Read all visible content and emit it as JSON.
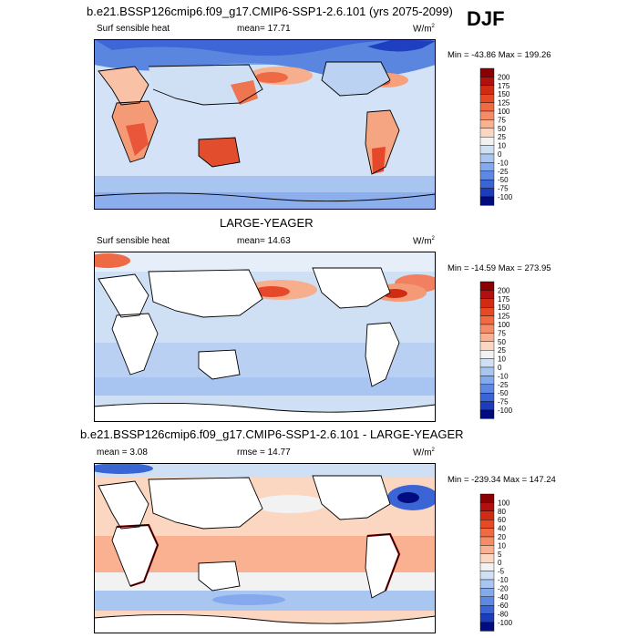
{
  "season": "DJF",
  "panels": [
    {
      "title": "b.e21.BSSP126cmip6.f09_g17.CMIP6-SSP1-2.6.101 (yrs 2075-2099)",
      "variable": "Surf sensible heat",
      "stat": "mean=  17.71",
      "units": "W/m",
      "units_sup": "2",
      "minmax": "Min = -43.86 Max = 199.26"
    },
    {
      "title": "LARGE-YEAGER",
      "variable": "Surf sensible heat",
      "stat": "mean=  14.63",
      "units": "W/m",
      "units_sup": "2",
      "minmax": "Min = -14.59 Max = 273.95"
    },
    {
      "title": "b.e21.BSSP126cmip6.f09_g17.CMIP6-SSP1-2.6.101 - LARGE-YEAGER",
      "variable": "mean =   3.08",
      "stat": "rmse =  14.77",
      "units": "W/m",
      "units_sup": "2",
      "minmax": "Min = -239.34 Max = 147.24"
    }
  ],
  "chart_data": [
    {
      "type": "heatmap",
      "title": "b.e21.BSSP126cmip6.f09_g17.CMIP6-SSP1-2.6.101 (yrs 2075-2099)",
      "variable": "Surf sensible heat",
      "mean": 17.71,
      "min": -43.86,
      "max": 199.26,
      "units": "W/m2",
      "colorbar_levels": [
        200,
        175,
        150,
        125,
        100,
        75,
        50,
        25,
        10,
        0,
        -10,
        -25,
        -50,
        -75,
        -100
      ],
      "colorbar_colors": [
        "#8b0000",
        "#b01010",
        "#d02c14",
        "#e54a25",
        "#f06a42",
        "#f58c68",
        "#f9b191",
        "#fbd6c0",
        "#f2f2f2",
        "#cfe0f5",
        "#a9c6f1",
        "#84a9ec",
        "#5f88e3",
        "#3b64d4",
        "#1c3cbc",
        "#000c7f"
      ]
    },
    {
      "type": "heatmap",
      "title": "LARGE-YEAGER",
      "variable": "Surf sensible heat",
      "mean": 14.63,
      "min": -14.59,
      "max": 273.95,
      "units": "W/m2",
      "colorbar_levels": [
        200,
        175,
        150,
        125,
        100,
        75,
        50,
        25,
        10,
        0,
        -10,
        -25,
        -50,
        -75,
        -100
      ],
      "colorbar_colors": [
        "#8b0000",
        "#b01010",
        "#d02c14",
        "#e54a25",
        "#f06a42",
        "#f58c68",
        "#f9b191",
        "#fbd6c0",
        "#f2f2f2",
        "#cfe0f5",
        "#a9c6f1",
        "#84a9ec",
        "#5f88e3",
        "#3b64d4",
        "#1c3cbc",
        "#000c7f"
      ]
    },
    {
      "type": "heatmap",
      "title": "b.e21.BSSP126cmip6.f09_g17.CMIP6-SSP1-2.6.101 - LARGE-YEAGER",
      "mean": 3.08,
      "rmse": 14.77,
      "min": -239.34,
      "max": 147.24,
      "units": "W/m2",
      "colorbar_levels": [
        100,
        80,
        60,
        40,
        20,
        10,
        5,
        0,
        -5,
        -10,
        -20,
        -40,
        -60,
        -80,
        -100
      ],
      "colorbar_colors": [
        "#8b0000",
        "#b01010",
        "#d02c14",
        "#e54a25",
        "#f06a42",
        "#f58c68",
        "#f9b191",
        "#fbd6c0",
        "#f2f2f2",
        "#cfe0f5",
        "#a9c6f1",
        "#84a9ec",
        "#5f88e3",
        "#3b64d4",
        "#1c3cbc",
        "#000c7f"
      ]
    }
  ]
}
